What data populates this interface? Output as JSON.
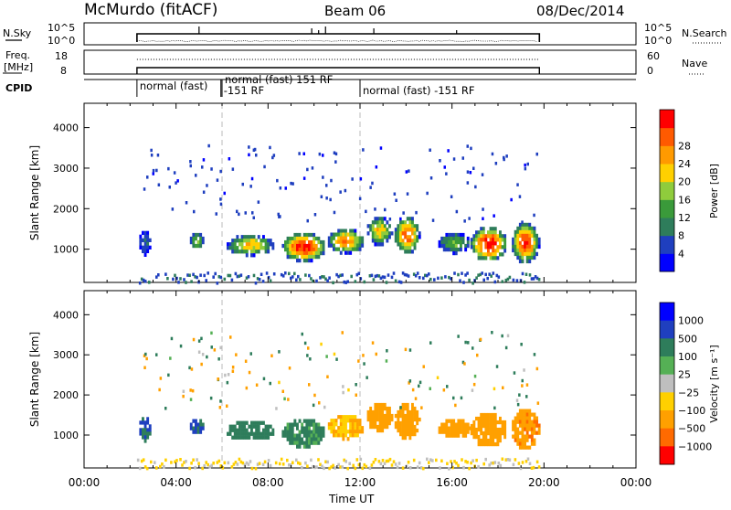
{
  "header": {
    "station": "McMurdo (fitACF)",
    "beam": "Beam 06",
    "date": "08/Dec/2014"
  },
  "top_panels": {
    "sky_label": "N.Sky",
    "sky_ticks": [
      "10^5",
      "10^0"
    ],
    "search_label": "N.Search",
    "freq_label_1": "Freq.",
    "freq_label_2": "[MHz]",
    "freq_ticks": [
      "18",
      "8"
    ],
    "nave_label": "Nave",
    "nave_ticks": [
      "60",
      "0"
    ],
    "cpid_label": "CPID",
    "cpid_segments": [
      {
        "label": "normal (fast)",
        "start": 2.3
      },
      {
        "label": "-151 RF",
        "start": 5.95
      },
      {
        "label": "normal (fast) 151 RF",
        "start": 6.0
      },
      {
        "label": "normal (fast) -151 RF",
        "start": 12.0
      }
    ]
  },
  "colors": {
    "power_scale": [
      "#0000ff",
      "#1f3fbf",
      "#2e7d5b",
      "#3a9a3a",
      "#8fcc3c",
      "#ffd000",
      "#ff9a00",
      "#ff5a00",
      "#ff0000"
    ],
    "velocity_scale": [
      "#0000ff",
      "#1f3fbf",
      "#2e7d5b",
      "#55b055",
      "#bfbfbf",
      "#ffd000",
      "#ffa000",
      "#ff6a00",
      "#ff0000"
    ],
    "ground_scatter": "#bfbfbf"
  },
  "chart_data": [
    {
      "type": "heatmap",
      "panel": "power",
      "xlabel": "Time UT",
      "ylabel": "Slant Range [km]",
      "x_range": [
        "00:00",
        "24:00"
      ],
      "x_ticks": [
        "00:00",
        "04:00",
        "08:00",
        "12:00",
        "16:00",
        "20:00",
        "00:00"
      ],
      "y_range_km": [
        180,
        4600
      ],
      "y_ticks": [
        1000,
        2000,
        3000,
        4000
      ],
      "colorbar_label": "Power [dB]",
      "colorbar_ticks": [
        "4",
        "8",
        "12",
        "16",
        "20",
        "24",
        "28"
      ],
      "data_span_hours": [
        2.3,
        19.8
      ],
      "echo_regions": [
        {
          "t0": 2.4,
          "t1": 2.9,
          "r0": 850,
          "r1": 1450,
          "peak_db": 8
        },
        {
          "t0": 4.6,
          "t1": 5.2,
          "r0": 1000,
          "r1": 1400,
          "peak_db": 16
        },
        {
          "t0": 6.2,
          "t1": 8.3,
          "r0": 850,
          "r1": 1350,
          "peak_db": 20
        },
        {
          "t0": 8.6,
          "t1": 10.5,
          "r0": 700,
          "r1": 1400,
          "peak_db": 30
        },
        {
          "t0": 10.6,
          "t1": 12.2,
          "r0": 900,
          "r1": 1500,
          "peak_db": 24
        },
        {
          "t0": 12.3,
          "t1": 13.4,
          "r0": 1100,
          "r1": 1800,
          "peak_db": 20
        },
        {
          "t0": 13.5,
          "t1": 14.6,
          "r0": 900,
          "r1": 1800,
          "peak_db": 26
        },
        {
          "t0": 15.4,
          "t1": 16.8,
          "r0": 900,
          "r1": 1400,
          "peak_db": 14
        },
        {
          "t0": 16.8,
          "t1": 18.4,
          "r0": 700,
          "r1": 1550,
          "peak_db": 30
        },
        {
          "t0": 18.6,
          "t1": 19.8,
          "r0": 650,
          "r1": 1650,
          "peak_db": 28
        }
      ]
    },
    {
      "type": "heatmap",
      "panel": "velocity",
      "xlabel": "Time UT",
      "ylabel": "Slant Range [km]",
      "x_range": [
        "00:00",
        "24:00"
      ],
      "x_ticks": [
        "00:00",
        "04:00",
        "08:00",
        "12:00",
        "16:00",
        "20:00",
        "00:00"
      ],
      "y_range_km": [
        180,
        4600
      ],
      "y_ticks": [
        1000,
        2000,
        3000,
        4000
      ],
      "colorbar_label": "Velocity [m s⁻¹]",
      "colorbar_ticks": [
        "1000",
        "500",
        "100",
        "25",
        "−25",
        "−100",
        "−500",
        "−1000"
      ],
      "data_span_hours": [
        2.3,
        19.8
      ],
      "echo_regions": [
        {
          "t0": 2.4,
          "t1": 2.9,
          "r0": 850,
          "r1": 1450,
          "vel": 300
        },
        {
          "t0": 4.6,
          "t1": 5.2,
          "r0": 1000,
          "r1": 1400,
          "vel": 300
        },
        {
          "t0": 6.2,
          "t1": 8.3,
          "r0": 850,
          "r1": 1350,
          "vel": 200
        },
        {
          "t0": 8.6,
          "t1": 10.5,
          "r0": 700,
          "r1": 1400,
          "vel": 80
        },
        {
          "t0": 10.6,
          "t1": 12.2,
          "r0": 900,
          "r1": 1500,
          "vel": -60
        },
        {
          "t0": 12.3,
          "t1": 13.4,
          "r0": 1100,
          "r1": 1800,
          "vel": -150
        },
        {
          "t0": 13.5,
          "t1": 14.6,
          "r0": 900,
          "r1": 1800,
          "vel": -150
        },
        {
          "t0": 15.4,
          "t1": 16.8,
          "r0": 900,
          "r1": 1400,
          "vel": -200
        },
        {
          "t0": 16.8,
          "t1": 18.4,
          "r0": 700,
          "r1": 1550,
          "vel": -200
        },
        {
          "t0": 18.6,
          "t1": 19.8,
          "r0": 650,
          "r1": 1650,
          "vel": -250
        }
      ]
    }
  ]
}
